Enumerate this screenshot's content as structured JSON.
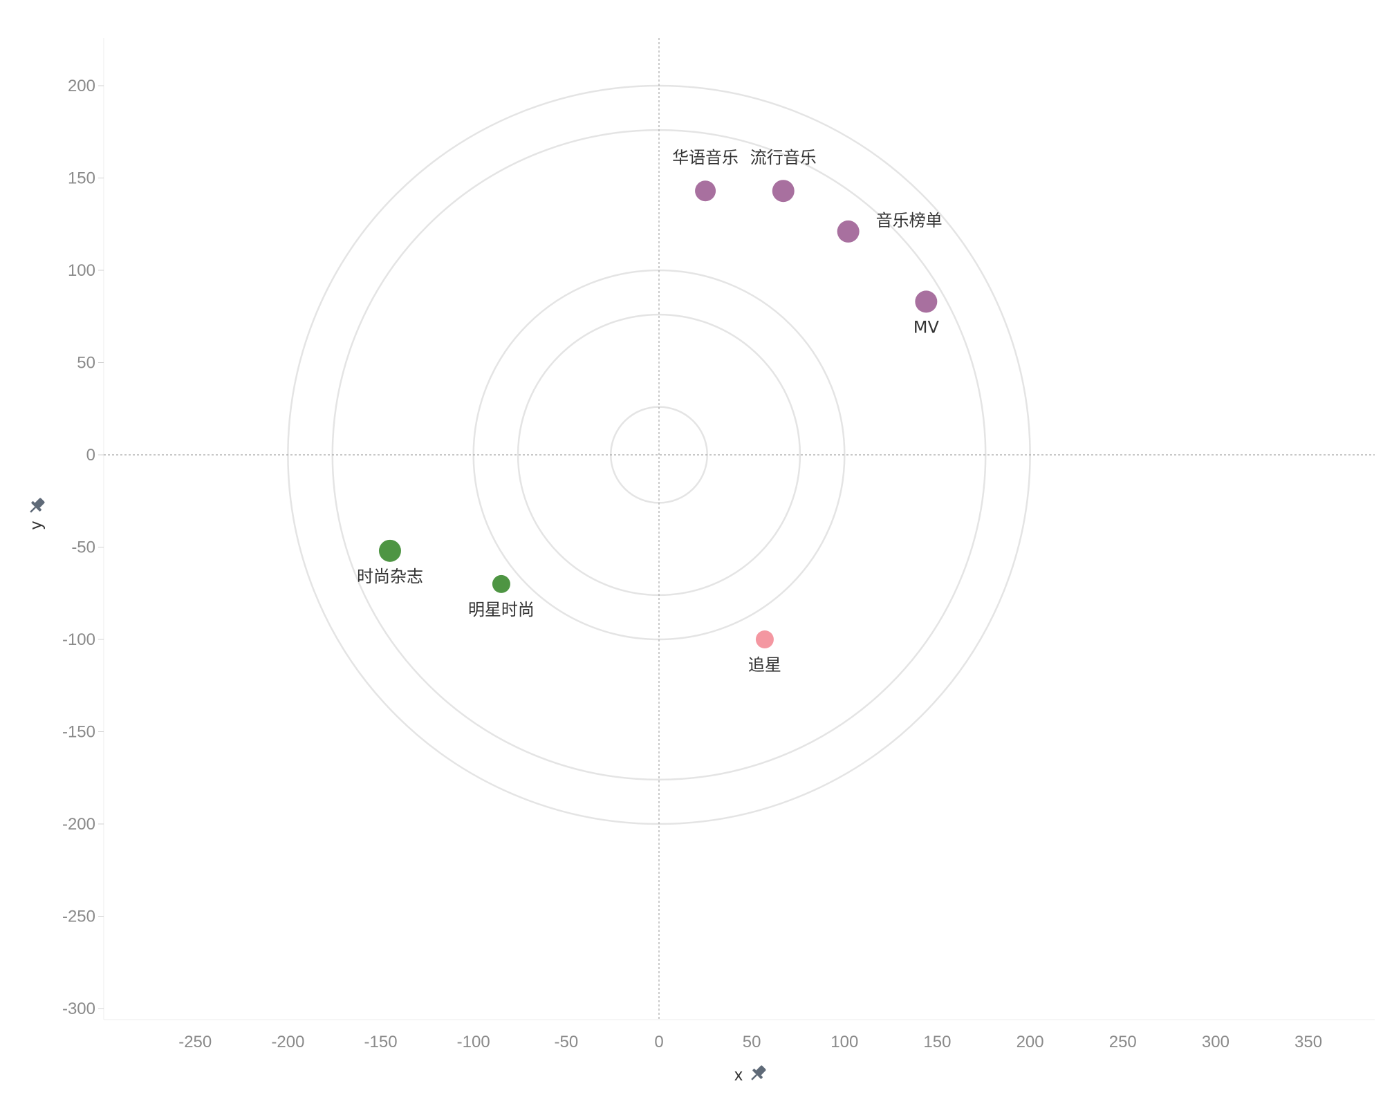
{
  "chart_data": {
    "type": "scatter",
    "title": "",
    "xlabel": "x",
    "ylabel": "y",
    "xlim": [
      -300,
      385
    ],
    "ylim": [
      -305,
      225
    ],
    "x_ticks": [
      -250,
      -200,
      -150,
      -100,
      -50,
      0,
      50,
      100,
      150,
      200,
      250,
      300,
      350
    ],
    "y_ticks": [
      200,
      150,
      100,
      50,
      0,
      -50,
      -100,
      -150,
      -200,
      -250,
      -300
    ],
    "x_tick_labels": [
      "-250",
      "-200",
      "-150",
      "-100",
      "-50",
      "0",
      "50",
      "100",
      "150",
      "200",
      "250",
      "300",
      "350"
    ],
    "y_tick_labels": [
      "200",
      "150",
      "100",
      "50",
      "0",
      "-50",
      "-100",
      "-150",
      "-200",
      "-250",
      "-300"
    ],
    "grid": false,
    "reference_lines": {
      "x": 0,
      "y": 0,
      "style": "dotted"
    },
    "circle_radii": [
      26,
      76,
      100,
      176,
      200
    ],
    "points": [
      {
        "label": "华语音乐",
        "x": 25,
        "y": 143,
        "color": "#a8709f",
        "label_pos": "above"
      },
      {
        "label": "流行音乐",
        "x": 67,
        "y": 143,
        "color": "#a8709f",
        "label_pos": "above"
      },
      {
        "label": "音乐榜单",
        "x": 102,
        "y": 121,
        "color": "#a8709f",
        "label_pos": "right"
      },
      {
        "label": "MV",
        "x": 144,
        "y": 83,
        "color": "#a8709f",
        "label_pos": "below"
      },
      {
        "label": "时尚杂志",
        "x": -145,
        "y": -52,
        "color": "#4e9543",
        "label_pos": "below"
      },
      {
        "label": "明星时尚",
        "x": -85,
        "y": -70,
        "color": "#4e9543",
        "label_pos": "below"
      },
      {
        "label": "追星",
        "x": 57,
        "y": -100,
        "color": "#f497a1",
        "label_pos": "below"
      }
    ]
  },
  "colors": {
    "music": "#a8709f",
    "fashion": "#4e9543",
    "star": "#f497a1",
    "rings": "#e4e4e4",
    "pin": "#5f6a78"
  }
}
